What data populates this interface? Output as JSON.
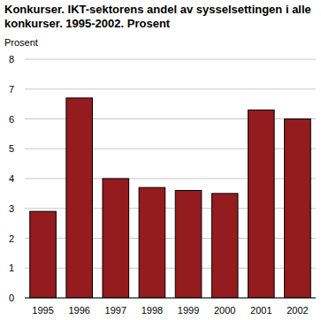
{
  "chart_data": {
    "type": "bar",
    "title": "Konkurser. IKT-sektorens andel av sysselsettingen i alle konkurser. 1995-2002. Prosent",
    "y_label": "Prosent",
    "categories": [
      "1995",
      "1996",
      "1997",
      "1998",
      "1999",
      "2000",
      "2001",
      "2002"
    ],
    "values": [
      2.9,
      6.7,
      4.0,
      3.7,
      3.6,
      3.5,
      6.3,
      6.0
    ],
    "color": "#941b1e",
    "ylim": [
      0,
      8
    ],
    "yticks": [
      0,
      1,
      2,
      3,
      4,
      5,
      6,
      7,
      8
    ],
    "grid": true
  }
}
